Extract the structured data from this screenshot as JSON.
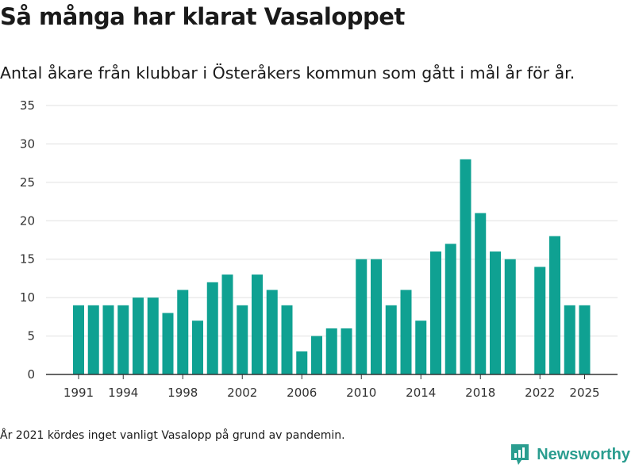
{
  "header": {
    "title": "Så många har klarat Vasaloppet",
    "subtitle": "Antal åkare från klubbar i Österåkers kommun som gått i mål år för år."
  },
  "footer": {
    "note": "År 2021 kördes inget vanligt Vasalopp på grund av pandemin.",
    "brand": "Newsworthy"
  },
  "colors": {
    "bar": "#0fa192",
    "grid": "#e0e0e0",
    "axis": "#333333",
    "brand": "#2a9d8f"
  },
  "chart_data": {
    "type": "bar",
    "title": "Så många har klarat Vasaloppet",
    "xlabel": "",
    "ylabel": "",
    "ylim": [
      0,
      35
    ],
    "yticks": [
      0,
      5,
      10,
      15,
      20,
      25,
      30,
      35
    ],
    "xticks": [
      "1991",
      "1994",
      "1998",
      "2002",
      "2006",
      "2010",
      "2014",
      "2018",
      "2022",
      "2025"
    ],
    "categories": [
      "1991",
      "1992",
      "1993",
      "1994",
      "1995",
      "1996",
      "1997",
      "1998",
      "1999",
      "2000",
      "2001",
      "2002",
      "2003",
      "2004",
      "2005",
      "2006",
      "2007",
      "2008",
      "2009",
      "2010",
      "2011",
      "2012",
      "2013",
      "2014",
      "2015",
      "2016",
      "2017",
      "2018",
      "2019",
      "2020",
      "2021",
      "2022",
      "2023",
      "2024",
      "2025"
    ],
    "values": [
      9,
      9,
      9,
      9,
      10,
      10,
      8,
      11,
      7,
      12,
      13,
      9,
      13,
      11,
      9,
      3,
      5,
      6,
      6,
      15,
      15,
      9,
      11,
      7,
      16,
      17,
      28,
      21,
      16,
      15,
      null,
      14,
      18,
      9,
      9
    ]
  }
}
